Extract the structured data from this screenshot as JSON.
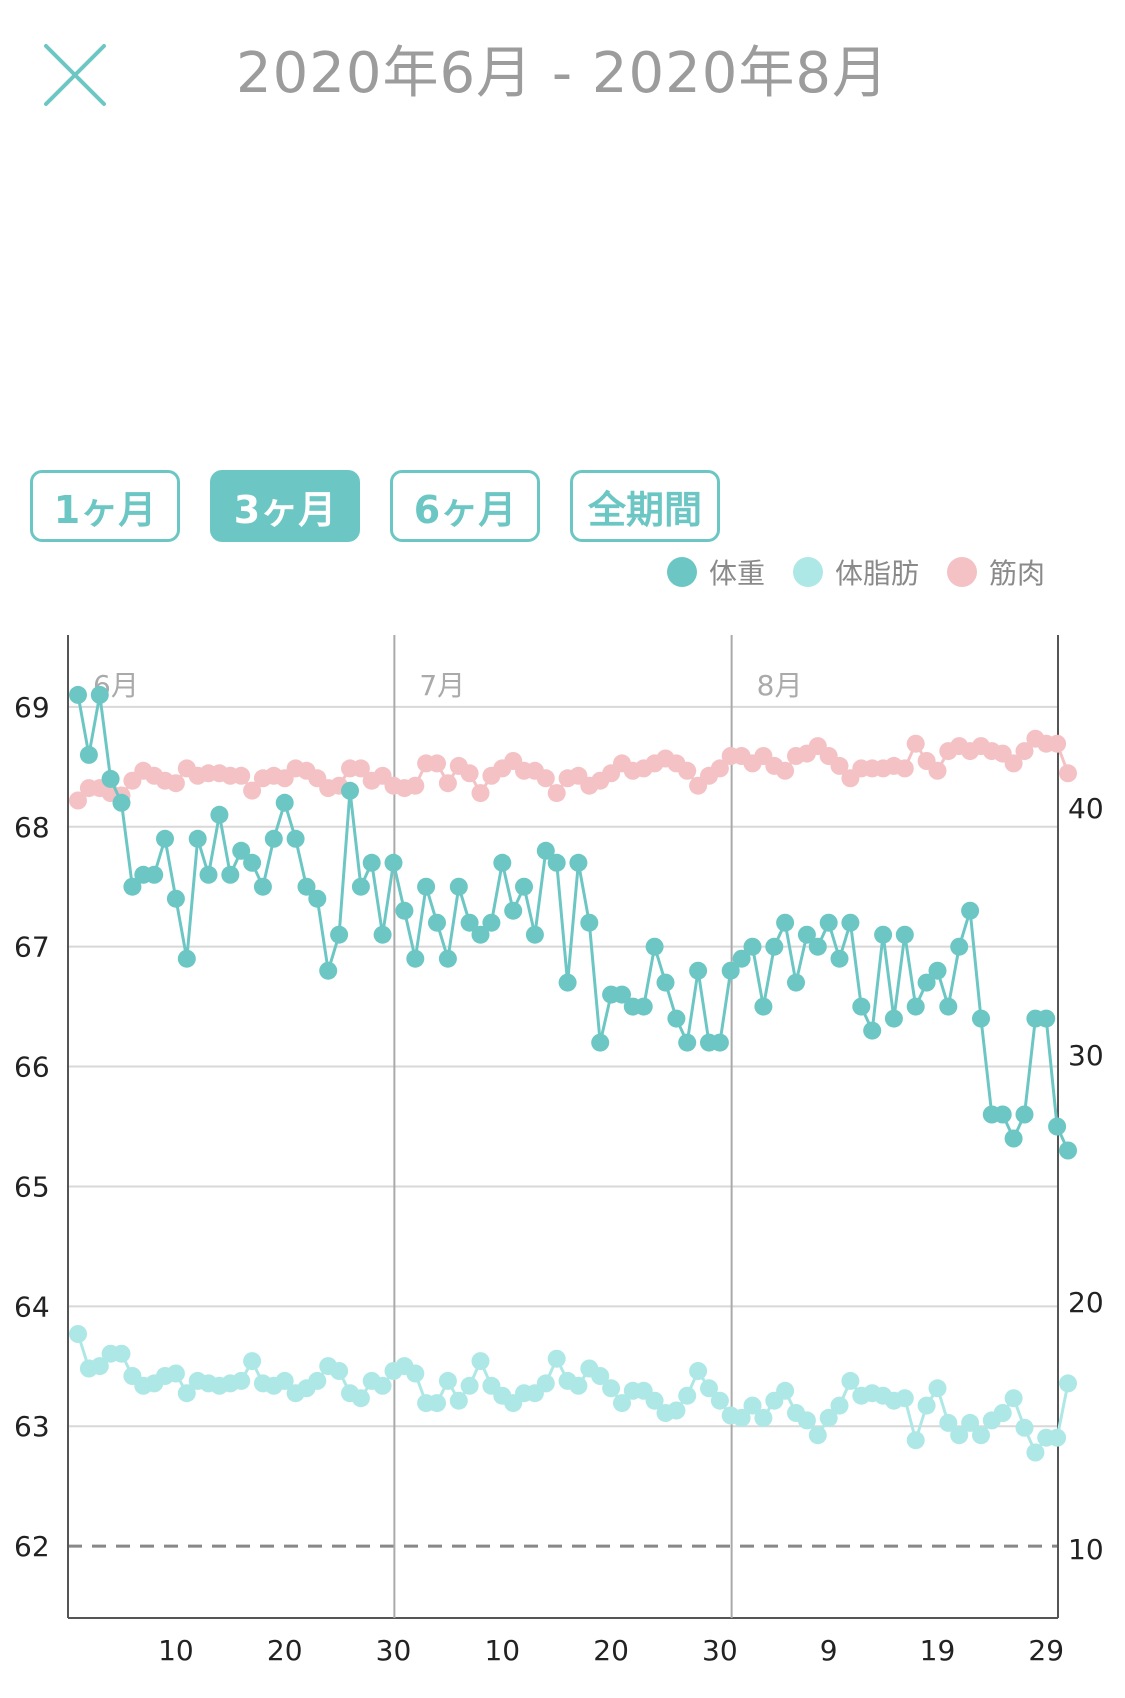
{
  "header": {
    "title": "2020年6月 - 2020年8月",
    "close_icon": "close-icon"
  },
  "period_tabs": [
    {
      "label": "1ヶ月",
      "active": false
    },
    {
      "label": "3ヶ月",
      "active": true
    },
    {
      "label": "6ヶ月",
      "active": false
    },
    {
      "label": "全期間",
      "active": false
    }
  ],
  "legend": [
    {
      "label": "体重",
      "color": "#6cc7c4"
    },
    {
      "label": "体脂肪",
      "color": "#aee8e6"
    },
    {
      "label": "筋肉",
      "color": "#f4c2c4"
    }
  ],
  "chart_data": {
    "type": "line",
    "month_labels": [
      {
        "label": "6月",
        "day_index": 0
      },
      {
        "label": "7月",
        "day_index": 30
      },
      {
        "label": "8月",
        "day_index": 61
      }
    ],
    "x_tick_labels": [
      {
        "label": "10",
        "day_index": 9
      },
      {
        "label": "20",
        "day_index": 19
      },
      {
        "label": "30",
        "day_index": 29
      },
      {
        "label": "10",
        "day_index": 39
      },
      {
        "label": "20",
        "day_index": 49
      },
      {
        "label": "30",
        "day_index": 59
      },
      {
        "label": "9",
        "day_index": 69
      },
      {
        "label": "19",
        "day_index": 79
      },
      {
        "label": "29",
        "day_index": 89
      }
    ],
    "x_range": [
      0,
      91
    ],
    "y_left": {
      "min": 61.4,
      "max": 69.6,
      "ticks": [
        62,
        63,
        64,
        65,
        66,
        67,
        68,
        69
      ]
    },
    "y_right": {
      "min": 7.2,
      "max": 47,
      "ticks": [
        10,
        20,
        30,
        40
      ]
    },
    "target_line": 62,
    "series": [
      {
        "name": "体重",
        "axis": "left",
        "values": [
          69.1,
          68.6,
          69.1,
          68.4,
          68.2,
          67.5,
          67.6,
          67.6,
          67.9,
          67.4,
          66.9,
          67.9,
          67.6,
          68.1,
          67.6,
          67.8,
          67.7,
          67.5,
          67.9,
          68.2,
          67.9,
          67.5,
          67.4,
          66.8,
          67.1,
          68.3,
          67.5,
          67.7,
          67.1,
          67.7,
          67.3,
          66.9,
          67.5,
          67.2,
          66.9,
          67.5,
          67.2,
          67.1,
          67.2,
          67.7,
          67.3,
          67.5,
          67.1,
          67.8,
          67.7,
          66.7,
          67.7,
          67.2,
          66.2,
          66.6,
          66.6,
          66.5,
          66.5,
          67.0,
          66.7,
          66.4,
          66.2,
          66.8,
          66.2,
          66.2,
          66.8,
          66.9,
          67.0,
          66.5,
          67.0,
          67.2,
          66.7,
          67.1,
          67.0,
          67.2,
          66.9,
          67.2,
          66.5,
          66.3,
          67.1,
          66.4,
          67.1,
          66.5,
          66.7,
          66.8,
          66.5,
          67.0,
          67.3,
          66.4,
          65.6,
          65.6,
          65.4,
          65.6,
          66.4,
          66.4,
          65.5,
          65.3
        ]
      },
      {
        "name": "体脂肪",
        "axis": "right",
        "values": [
          18.7,
          17.3,
          17.4,
          17.9,
          17.9,
          17.0,
          16.6,
          16.7,
          17.0,
          17.1,
          16.3,
          16.8,
          16.7,
          16.6,
          16.7,
          16.8,
          17.6,
          16.7,
          16.6,
          16.8,
          16.3,
          16.5,
          16.8,
          17.4,
          17.2,
          16.3,
          16.1,
          16.8,
          16.6,
          17.2,
          17.4,
          17.1,
          15.9,
          15.9,
          16.8,
          16.0,
          16.6,
          17.6,
          16.6,
          16.2,
          15.9,
          16.3,
          16.3,
          16.7,
          17.7,
          16.8,
          16.6,
          17.3,
          17.0,
          16.5,
          15.9,
          16.4,
          16.4,
          16.0,
          15.5,
          15.6,
          16.2,
          17.2,
          16.5,
          16.0,
          15.4,
          15.3,
          15.8,
          15.3,
          16.0,
          16.4,
          15.5,
          15.2,
          14.6,
          15.3,
          15.8,
          16.8,
          16.2,
          16.3,
          16.2,
          16.0,
          16.1,
          14.4,
          15.8,
          16.5,
          15.1,
          14.6,
          15.1,
          14.6,
          15.2,
          15.5,
          16.1,
          14.9,
          13.9,
          14.5,
          14.5,
          16.7
        ]
      },
      {
        "name": "筋肉",
        "axis": "right",
        "values": [
          40.3,
          40.8,
          40.8,
          40.6,
          40.5,
          41.1,
          41.5,
          41.3,
          41.1,
          41.0,
          41.6,
          41.3,
          41.4,
          41.4,
          41.3,
          41.3,
          40.7,
          41.2,
          41.3,
          41.2,
          41.6,
          41.5,
          41.2,
          40.8,
          40.9,
          41.6,
          41.6,
          41.1,
          41.3,
          40.9,
          40.8,
          40.9,
          41.8,
          41.8,
          41.0,
          41.7,
          41.4,
          40.6,
          41.3,
          41.6,
          41.9,
          41.5,
          41.5,
          41.2,
          40.6,
          41.2,
          41.3,
          40.9,
          41.1,
          41.4,
          41.8,
          41.5,
          41.6,
          41.8,
          42.0,
          41.8,
          41.5,
          40.9,
          41.3,
          41.6,
          42.1,
          42.1,
          41.8,
          42.1,
          41.7,
          41.5,
          42.1,
          42.2,
          42.5,
          42.1,
          41.7,
          41.2,
          41.6,
          41.6,
          41.6,
          41.7,
          41.6,
          42.6,
          41.9,
          41.5,
          42.3,
          42.5,
          42.3,
          42.5,
          42.3,
          42.2,
          41.8,
          42.3,
          42.8,
          42.6,
          42.6,
          41.4
        ]
      }
    ]
  }
}
